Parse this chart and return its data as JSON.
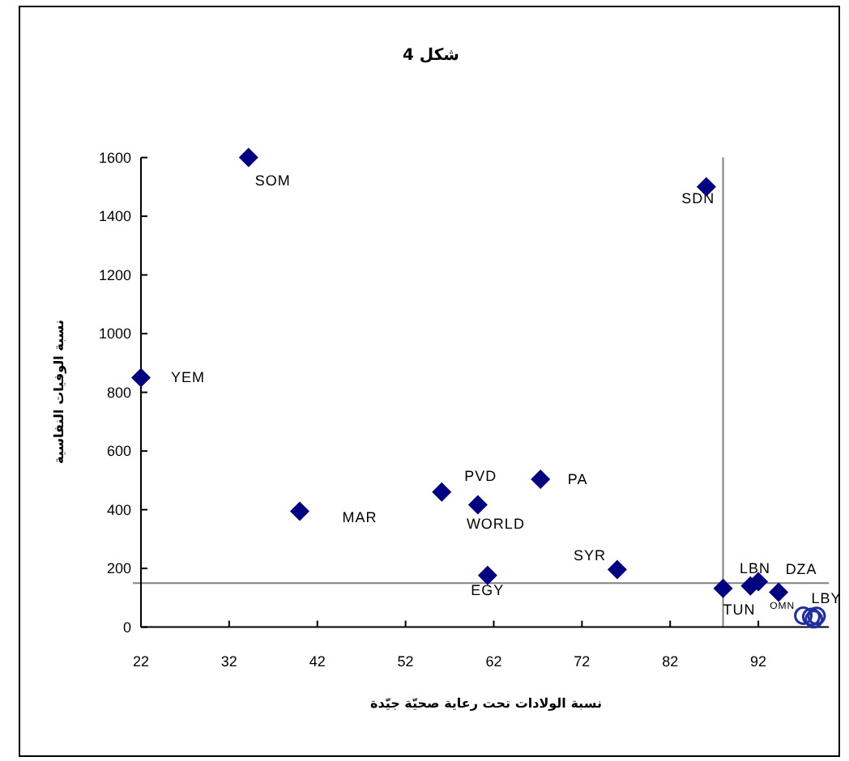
{
  "chart_data": {
    "type": "scatter",
    "title": "شكل 4",
    "xlabel": "نسبة الولادات تحت رعاية صحيّة جيّدة",
    "ylabel": "نسبة الوفيات النفاسية",
    "xlim": [
      22,
      100
    ],
    "xticks": [
      22,
      32,
      42,
      52,
      62,
      72,
      82,
      92
    ],
    "ylim": [
      0,
      1600
    ],
    "yticks": [
      0,
      200,
      400,
      600,
      800,
      1000,
      1200,
      1400,
      1600
    ],
    "series": [
      {
        "color": "#000080",
        "marker": "diamond",
        "x": [
          34.2,
          22,
          40,
          56.1,
          60.2,
          61.3,
          67.3,
          76,
          86.1,
          88,
          91.1,
          92,
          94.3
        ],
        "values": [
          1600,
          850,
          395,
          460,
          417,
          176,
          504,
          196,
          1500,
          132,
          140,
          155,
          119
        ]
      },
      {
        "color": "#1f2f9f",
        "marker": "circle",
        "x": [
          97.1,
          98,
          98.6,
          98.3
        ],
        "values": [
          39,
          35,
          38,
          27
        ]
      }
    ],
    "ref_lines": [
      {
        "axis": "y",
        "value": 150,
        "color": "#808080"
      },
      {
        "axis": "x",
        "value": 88,
        "color": "#808080"
      }
    ],
    "annotations": [
      {
        "text": "SOM",
        "x": 34.2,
        "y": 1600
      },
      {
        "text": "YEM",
        "x": 22,
        "y": 850
      },
      {
        "text": "MAR",
        "x": 40,
        "y": 395
      },
      {
        "text": "PVD",
        "x": 56.1,
        "y": 460
      },
      {
        "text": "WORLD",
        "x": 60.2,
        "y": 417
      },
      {
        "text": "EGY",
        "x": 61.3,
        "y": 176
      },
      {
        "text": "PA",
        "x": 67.3,
        "y": 504
      },
      {
        "text": "SYR",
        "x": 76,
        "y": 196
      },
      {
        "text": "SDN",
        "x": 86.1,
        "y": 1500
      },
      {
        "text": "TUN",
        "x": 88,
        "y": 132
      },
      {
        "text": "LBN",
        "x": 92,
        "y": 155
      },
      {
        "text": "DZA",
        "x": 94.3,
        "y": 119
      },
      {
        "text": "OMN",
        "x": 97.1,
        "y": 39
      },
      {
        "text": "LBY",
        "x": 98.6,
        "y": 38
      }
    ]
  }
}
